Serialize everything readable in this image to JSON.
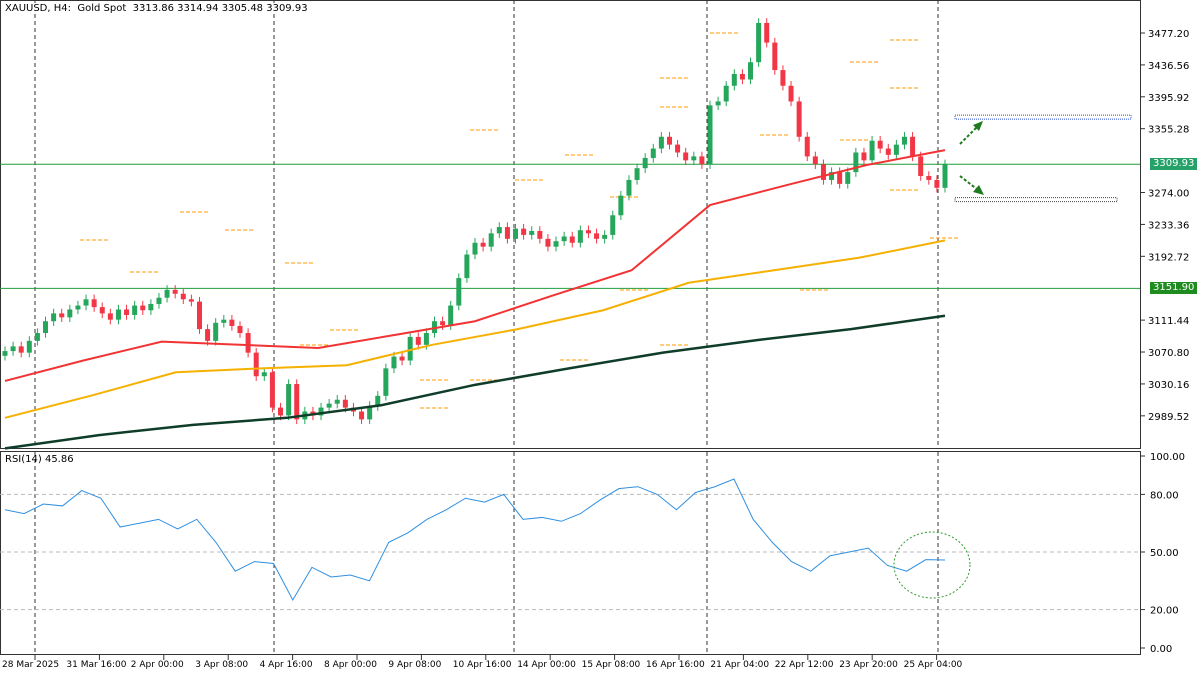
{
  "header": {
    "symbol": "XAUUSD, H4:",
    "description": "Gold Spot",
    "ohlc_text": "3313.86 3314.94 3305.48 3309.93"
  },
  "rsi": {
    "label": "RSI(14) 45.86",
    "value": 45.86
  },
  "price_axis": [
    "3477.20",
    "3436.56",
    "3395.92",
    "3355.28",
    "3274.00",
    "3233.36",
    "3192.72",
    "3111.44",
    "3070.80",
    "3030.16",
    "2989.52"
  ],
  "rsi_axis": [
    "100.00",
    "80.00",
    "50.00",
    "20.00",
    "0.00"
  ],
  "price_labels": [
    {
      "text": "3309.93",
      "value": 3309.93,
      "color": "#26a269"
    },
    {
      "text": "3151.90",
      "value": 3151.9,
      "color": "#1e8c1e"
    }
  ],
  "time_axis": [
    "28 Mar 2025",
    "31 Mar 16:00",
    "2 Apr 00:00",
    "3 Apr 08:00",
    "4 Apr 16:00",
    "8 Apr 00:00",
    "9 Apr 08:00",
    "10 Apr 16:00",
    "14 Apr 00:00",
    "15 Apr 08:00",
    "16 Apr 16:00",
    "21 Apr 04:00",
    "22 Apr 12:00",
    "23 Apr 20:00",
    "25 Apr 04:00"
  ],
  "colors": {
    "bull": "#26a65b",
    "bear": "#f23645",
    "ma_fast": "#f23333",
    "ma_mid": "#f5b000",
    "ma_slow": "#0f3d2a",
    "rsi": "#2f8fe0",
    "level": "#1f9c3a",
    "pivot": "#ff9900"
  },
  "chart_data": {
    "type": "candlestick",
    "price_range": [
      2948,
      3510
    ],
    "closes": [
      3072,
      3078,
      3070,
      3085,
      3095,
      3110,
      3120,
      3115,
      3125,
      3130,
      3138,
      3128,
      3120,
      3112,
      3125,
      3118,
      3130,
      3124,
      3132,
      3140,
      3150,
      3145,
      3138,
      3135,
      3100,
      3085,
      3108,
      3112,
      3104,
      3095,
      3070,
      3040,
      3045,
      3000,
      2990,
      3030,
      2985,
      2995,
      2990,
      3000,
      3005,
      3010,
      3000,
      2995,
      2985,
      3002,
      3015,
      3050,
      3065,
      3060,
      3090,
      3080,
      3095,
      3110,
      3105,
      3130,
      3165,
      3195,
      3210,
      3205,
      3222,
      3230,
      3215,
      3228,
      3220,
      3225,
      3215,
      3205,
      3212,
      3218,
      3210,
      3226,
      3222,
      3215,
      3220,
      3245,
      3270,
      3290,
      3305,
      3318,
      3330,
      3345,
      3335,
      3325,
      3315,
      3320,
      3310,
      3385,
      3390,
      3410,
      3425,
      3418,
      3440,
      3490,
      3465,
      3430,
      3410,
      3390,
      3345,
      3320,
      3310,
      3290,
      3300,
      3285,
      3300,
      3325,
      3315,
      3340,
      3330,
      3322,
      3335,
      3345,
      3320,
      3295,
      3290,
      3280,
      3309.93
    ],
    "ma_fast": [
      3034,
      3060,
      3084,
      3080,
      3076,
      3093,
      3110,
      3143,
      3175,
      3258,
      3284,
      3309,
      3328
    ],
    "ma_mid": [
      2987,
      3015,
      3045,
      3050,
      3054,
      3080,
      3100,
      3124,
      3159,
      3175,
      3191,
      3213
    ],
    "ma_slow": [
      2948,
      2965,
      2978,
      2987,
      3003,
      3029,
      3050,
      3070,
      3086,
      3100,
      3117
    ],
    "horizontal_levels": [
      3309.93,
      3151.9
    ],
    "target_zones": [
      3370,
      3265
    ],
    "rsi_values": [
      72,
      70,
      75,
      74,
      82,
      78,
      63,
      65,
      67,
      62,
      67,
      55,
      40,
      45,
      44,
      25,
      42,
      37,
      38,
      35,
      55,
      60,
      67,
      72,
      78,
      76,
      80,
      67,
      68,
      66,
      70,
      77,
      83,
      84,
      80,
      72,
      81,
      84,
      88,
      67,
      55,
      45,
      40,
      48,
      50,
      52,
      43,
      40,
      46,
      45.86
    ],
    "rsi_range": [
      0,
      100
    ]
  }
}
